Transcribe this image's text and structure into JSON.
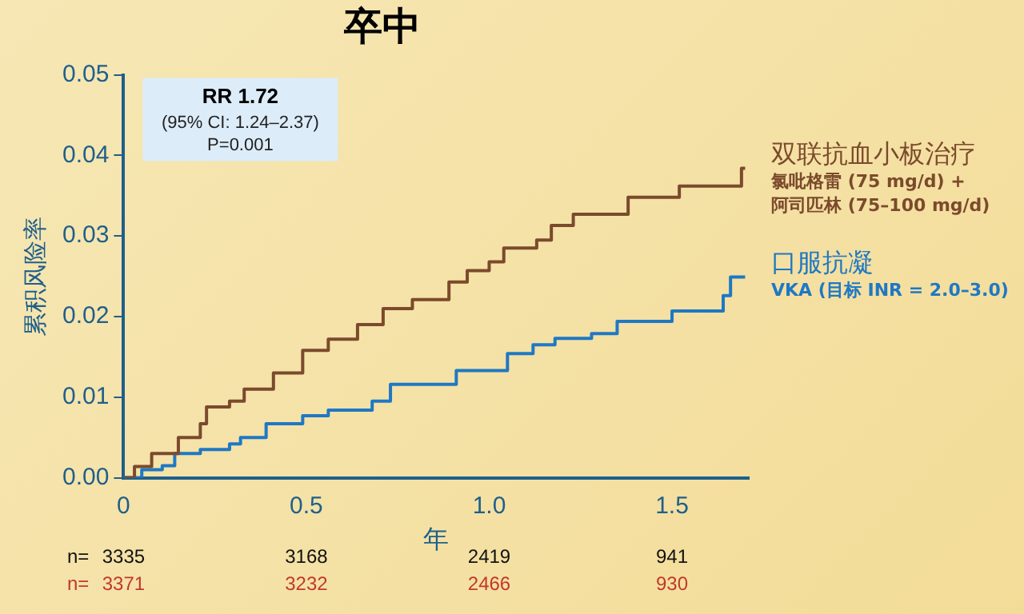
{
  "chart_data": {
    "type": "step",
    "title": "卒中",
    "xlabel": "年",
    "ylabel": "累积风险率",
    "xlim": [
      0,
      1.71
    ],
    "xticks": [
      0,
      0.5,
      {
        "value": 1,
        "label": "1.0"
      },
      1.5
    ],
    "ylim": [
      0,
      0.05
    ],
    "yticks": [
      {
        "value": 0,
        "label": "0.00"
      },
      {
        "value": 0.01,
        "label": "0.01"
      },
      {
        "value": 0.02,
        "label": "0.02"
      },
      {
        "value": 0.03,
        "label": "0.03"
      },
      {
        "value": 0.04,
        "label": "0.04"
      },
      {
        "value": 0.05,
        "label": "0.05"
      }
    ],
    "grid": false,
    "legend": false,
    "marker": "none",
    "line_style": "solid",
    "series": [
      {
        "name": "双联抗血小板治疗",
        "color": "#7b4a2c",
        "x": [
          0,
          0.03,
          0.077,
          0.15,
          0.21,
          0.227,
          0.29,
          0.33,
          0.41,
          0.49,
          0.56,
          0.64,
          0.71,
          0.79,
          0.89,
          0.94,
          1.0,
          1.04,
          1.13,
          1.17,
          1.23,
          1.38,
          1.52,
          1.69,
          1.7
        ],
        "values": [
          0,
          0.0014,
          0.003,
          0.005,
          0.0067,
          0.0088,
          0.0095,
          0.011,
          0.013,
          0.0158,
          0.0172,
          0.019,
          0.021,
          0.0221,
          0.0243,
          0.0257,
          0.0268,
          0.0285,
          0.0295,
          0.0313,
          0.0327,
          0.0348,
          0.0362,
          0.0384,
          0.0384
        ]
      },
      {
        "name": "口服抗凝",
        "color": "#1f78c4",
        "x": [
          0,
          0.05,
          0.106,
          0.14,
          0.21,
          0.29,
          0.32,
          0.39,
          0.49,
          0.56,
          0.68,
          0.73,
          0.91,
          1.05,
          1.12,
          1.18,
          1.28,
          1.35,
          1.5,
          1.64,
          1.66,
          1.7
        ],
        "values": [
          0,
          0.001,
          0.0015,
          0.003,
          0.0035,
          0.0042,
          0.005,
          0.0067,
          0.0077,
          0.0084,
          0.0095,
          0.0116,
          0.0133,
          0.0154,
          0.0165,
          0.0173,
          0.0179,
          0.0194,
          0.0207,
          0.0226,
          0.0249,
          0.0249
        ]
      }
    ],
    "annotations": [
      "RR 1.72",
      "(95% CI: 1.24–2.37)",
      "P=0.001",
      "氯吡格雷 (75 mg/d) +",
      "阿司匹林 (75–100 mg/d)",
      "VKA (目标 INR = 2.0–3.0)",
      "n=",
      "3335",
      "3168",
      "2419",
      "941",
      "n=",
      "3371",
      "3232",
      "2466",
      "930"
    ]
  }
}
